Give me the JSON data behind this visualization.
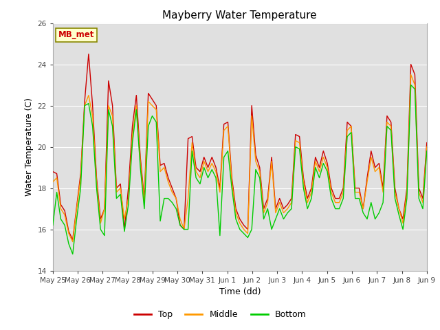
{
  "title": "Mayberry Water Temperature",
  "ylabel": "Water Temperature (C)",
  "xlabel": "Time (dd)",
  "ylim": [
    14,
    26
  ],
  "yticks": [
    14,
    16,
    18,
    20,
    22,
    24,
    26
  ],
  "legend_label": "MB_met",
  "legend_entries": [
    "Top",
    "Middle",
    "Bottom"
  ],
  "line_colors": [
    "#cc0000",
    "#ff9900",
    "#00cc00"
  ],
  "background_color": "#e0e0e0",
  "xtick_labels": [
    "May 25",
    "May 26",
    "May 27",
    "May 28",
    "May 29",
    "May 30",
    "May 31",
    "Jun 1",
    "Jun 2",
    "Jun 3",
    "Jun 4",
    "Jun 5",
    "Jun 6",
    "Jun 7",
    "Jun 8",
    "Jun 9"
  ],
  "top_data": [
    18.8,
    18.7,
    17.2,
    16.9,
    15.9,
    15.5,
    17.1,
    18.7,
    22.2,
    24.5,
    22.0,
    18.5,
    16.5,
    17.0,
    23.2,
    22.0,
    18.0,
    18.2,
    16.0,
    18.0,
    21.0,
    22.5,
    19.5,
    17.5,
    22.6,
    22.3,
    22.0,
    19.1,
    19.2,
    18.5,
    18.0,
    17.5,
    16.2,
    16.0,
    20.4,
    20.5,
    19.0,
    18.8,
    19.5,
    19.0,
    19.5,
    19.0,
    18.0,
    21.1,
    21.2,
    18.5,
    17.0,
    16.5,
    16.2,
    16.0,
    22.0,
    19.6,
    19.0,
    17.0,
    17.5,
    19.5,
    17.0,
    17.5,
    17.0,
    17.2,
    17.5,
    20.6,
    20.5,
    18.5,
    17.5,
    18.0,
    19.5,
    19.0,
    19.8,
    19.2,
    18.0,
    17.5,
    17.5,
    18.0,
    21.2,
    21.0,
    18.0,
    18.0,
    17.0,
    18.5,
    19.8,
    19.0,
    19.2,
    18.0,
    21.5,
    21.2,
    18.0,
    17.0,
    16.5,
    18.0,
    24.0,
    23.5,
    18.0,
    17.5,
    20.2
  ],
  "middle_data": [
    18.3,
    18.5,
    17.0,
    16.7,
    15.8,
    15.4,
    17.0,
    18.5,
    22.0,
    22.5,
    21.5,
    18.3,
    16.3,
    17.0,
    22.0,
    21.5,
    17.8,
    18.0,
    16.5,
    17.5,
    20.5,
    22.0,
    19.3,
    17.3,
    22.2,
    22.0,
    21.8,
    18.8,
    19.0,
    18.3,
    17.8,
    17.5,
    16.5,
    16.0,
    17.5,
    20.2,
    18.8,
    18.5,
    19.3,
    18.8,
    19.2,
    18.8,
    17.8,
    20.8,
    21.0,
    18.3,
    16.8,
    16.3,
    16.0,
    15.8,
    21.5,
    19.3,
    18.8,
    16.8,
    17.3,
    19.3,
    16.8,
    17.3,
    16.8,
    17.0,
    17.3,
    20.3,
    20.2,
    18.3,
    17.3,
    17.8,
    19.3,
    18.8,
    19.5,
    19.0,
    17.8,
    17.3,
    17.3,
    17.8,
    20.8,
    21.0,
    17.8,
    17.8,
    17.0,
    18.3,
    19.5,
    18.8,
    19.0,
    17.8,
    21.2,
    21.0,
    17.8,
    17.0,
    16.3,
    17.8,
    23.5,
    23.0,
    17.8,
    17.3,
    20.0
  ],
  "bottom_data": [
    16.2,
    17.8,
    16.5,
    16.2,
    15.3,
    14.8,
    16.5,
    18.0,
    22.0,
    22.1,
    21.0,
    18.0,
    16.0,
    15.7,
    21.8,
    21.0,
    17.5,
    17.7,
    15.9,
    17.2,
    20.2,
    21.8,
    19.0,
    17.0,
    21.0,
    21.5,
    21.2,
    16.4,
    17.5,
    17.5,
    17.3,
    17.0,
    16.2,
    16.0,
    16.0,
    19.8,
    18.5,
    18.2,
    19.0,
    18.5,
    18.9,
    18.5,
    15.7,
    19.5,
    19.8,
    18.0,
    16.5,
    16.0,
    15.8,
    15.6,
    16.0,
    18.9,
    18.5,
    16.5,
    17.0,
    16.0,
    16.5,
    17.0,
    16.5,
    16.8,
    17.0,
    20.0,
    19.9,
    18.0,
    17.0,
    17.5,
    19.0,
    18.5,
    19.2,
    18.8,
    17.5,
    17.0,
    17.0,
    17.5,
    20.5,
    20.7,
    17.5,
    17.5,
    16.8,
    16.5,
    17.3,
    16.5,
    16.8,
    17.3,
    21.0,
    20.8,
    17.5,
    16.7,
    16.0,
    17.5,
    23.0,
    22.8,
    17.5,
    17.0,
    19.8
  ],
  "n_points": 95,
  "days_span": 15.0
}
